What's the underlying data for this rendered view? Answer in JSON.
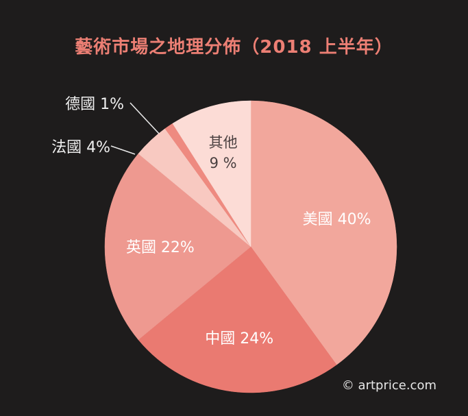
{
  "chart_data": {
    "type": "pie",
    "title": "藝術市場之地理分佈（2018 上半年）",
    "slices": [
      {
        "label": "美國",
        "value": 40,
        "display": "美國 40%",
        "color": "#f2a79c"
      },
      {
        "label": "中國",
        "value": 24,
        "display": "中國 24%",
        "color": "#ea7a71"
      },
      {
        "label": "英國",
        "value": 22,
        "display": "英國 22%",
        "color": "#ee9990"
      },
      {
        "label": "法國",
        "value": 4,
        "display": "法國 4%",
        "color": "#f8c9c1"
      },
      {
        "label": "德國",
        "value": 1,
        "display": "德國 1%",
        "color": "#ee8a80"
      },
      {
        "label": "其他",
        "value": 9,
        "display_lines": [
          "其他",
          "9 %"
        ],
        "color": "#fcdcd6"
      }
    ]
  },
  "copyright": "© artprice.com",
  "colors": {
    "background": "#1e1c1c",
    "title": "#ec7f74",
    "label_light": "#ffffff",
    "label_dark": "#4a4040",
    "callout_text": "#f0f0f0"
  }
}
